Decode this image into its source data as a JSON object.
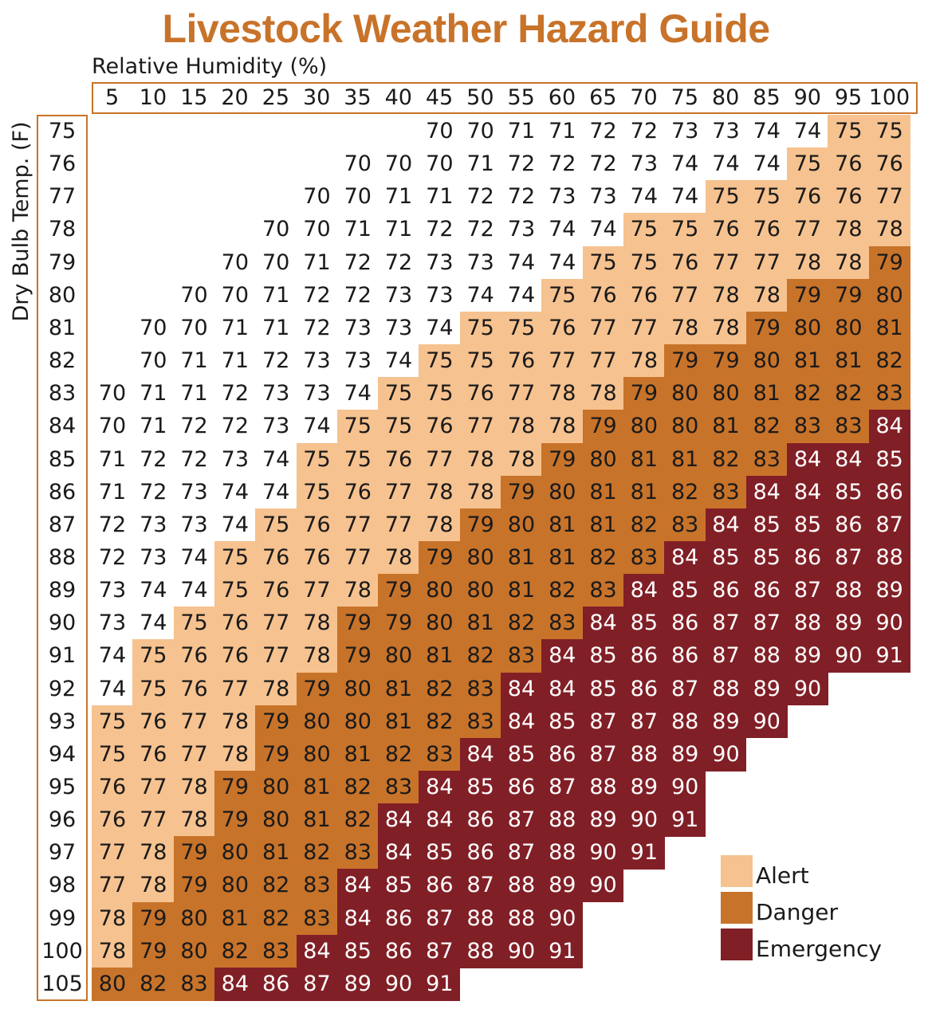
{
  "chart_data": {
    "type": "heatmap",
    "title": "Livestock Weather Hazard Guide",
    "xlabel": "Relative Humidity (%)",
    "ylabel": "Dry Bulb Temp. (F)",
    "x": [
      "5",
      "10",
      "15",
      "20",
      "25",
      "30",
      "35",
      "40",
      "45",
      "50",
      "55",
      "60",
      "65",
      "70",
      "75",
      "80",
      "85",
      "90",
      "95",
      "100"
    ],
    "y": [
      "75",
      "76",
      "77",
      "78",
      "79",
      "80",
      "81",
      "82",
      "83",
      "84",
      "85",
      "86",
      "87",
      "88",
      "89",
      "90",
      "91",
      "92",
      "93",
      "94",
      "95",
      "96",
      "97",
      "98",
      "99",
      "100",
      "105"
    ],
    "rows": [
      [
        null,
        null,
        null,
        null,
        null,
        null,
        null,
        null,
        70,
        70,
        71,
        71,
        72,
        72,
        73,
        73,
        74,
        74,
        75,
        75
      ],
      [
        null,
        null,
        null,
        null,
        null,
        null,
        70,
        70,
        70,
        71,
        72,
        72,
        72,
        73,
        74,
        74,
        74,
        75,
        76,
        76
      ],
      [
        null,
        null,
        null,
        null,
        null,
        70,
        70,
        71,
        71,
        72,
        72,
        73,
        73,
        74,
        74,
        75,
        75,
        76,
        76,
        77
      ],
      [
        null,
        null,
        null,
        null,
        70,
        70,
        71,
        71,
        72,
        72,
        73,
        74,
        74,
        75,
        75,
        76,
        76,
        77,
        78,
        78
      ],
      [
        null,
        null,
        null,
        70,
        70,
        71,
        72,
        72,
        73,
        73,
        74,
        74,
        75,
        75,
        76,
        77,
        77,
        78,
        78,
        79
      ],
      [
        null,
        null,
        70,
        70,
        71,
        72,
        72,
        73,
        73,
        74,
        74,
        75,
        76,
        76,
        77,
        78,
        78,
        79,
        79,
        80
      ],
      [
        null,
        70,
        70,
        71,
        71,
        72,
        73,
        73,
        74,
        75,
        75,
        76,
        77,
        77,
        78,
        78,
        79,
        80,
        80,
        81
      ],
      [
        null,
        70,
        71,
        71,
        72,
        73,
        73,
        74,
        75,
        75,
        76,
        77,
        77,
        78,
        79,
        79,
        80,
        81,
        81,
        82
      ],
      [
        70,
        71,
        71,
        72,
        73,
        73,
        74,
        75,
        75,
        76,
        77,
        78,
        78,
        79,
        80,
        80,
        81,
        82,
        82,
        83
      ],
      [
        70,
        71,
        72,
        72,
        73,
        74,
        75,
        75,
        76,
        77,
        78,
        78,
        79,
        80,
        80,
        81,
        82,
        83,
        83,
        84
      ],
      [
        71,
        72,
        72,
        73,
        74,
        75,
        75,
        76,
        77,
        78,
        78,
        79,
        80,
        81,
        81,
        82,
        83,
        84,
        84,
        85
      ],
      [
        71,
        72,
        73,
        74,
        74,
        75,
        76,
        77,
        78,
        78,
        79,
        80,
        81,
        81,
        82,
        83,
        84,
        84,
        85,
        86
      ],
      [
        72,
        73,
        73,
        74,
        75,
        76,
        77,
        77,
        78,
        79,
        80,
        81,
        81,
        82,
        83,
        84,
        85,
        85,
        86,
        87
      ],
      [
        72,
        73,
        74,
        75,
        76,
        76,
        77,
        78,
        79,
        80,
        81,
        81,
        82,
        83,
        84,
        85,
        85,
        86,
        87,
        88
      ],
      [
        73,
        74,
        74,
        75,
        76,
        77,
        78,
        79,
        80,
        80,
        81,
        82,
        83,
        84,
        85,
        86,
        86,
        87,
        88,
        89
      ],
      [
        73,
        74,
        75,
        76,
        77,
        78,
        79,
        79,
        80,
        81,
        82,
        83,
        84,
        85,
        86,
        87,
        87,
        88,
        89,
        90
      ],
      [
        74,
        75,
        76,
        76,
        77,
        78,
        79,
        80,
        81,
        82,
        83,
        84,
        85,
        86,
        86,
        87,
        88,
        89,
        90,
        91
      ],
      [
        74,
        75,
        76,
        77,
        78,
        79,
        80,
        81,
        82,
        83,
        84,
        84,
        85,
        86,
        87,
        88,
        89,
        90,
        null,
        null
      ],
      [
        75,
        76,
        77,
        78,
        79,
        80,
        80,
        81,
        82,
        83,
        84,
        85,
        87,
        87,
        88,
        89,
        90,
        null,
        null,
        null
      ],
      [
        75,
        76,
        77,
        78,
        79,
        80,
        81,
        82,
        83,
        84,
        85,
        86,
        87,
        88,
        89,
        90,
        null,
        null,
        null,
        null
      ],
      [
        76,
        77,
        78,
        79,
        80,
        81,
        82,
        83,
        84,
        85,
        86,
        87,
        88,
        89,
        90,
        null,
        null,
        null,
        null,
        null
      ],
      [
        76,
        77,
        78,
        79,
        80,
        81,
        82,
        84,
        84,
        86,
        87,
        88,
        89,
        90,
        91,
        null,
        null,
        null,
        null,
        null
      ],
      [
        77,
        78,
        79,
        80,
        81,
        82,
        83,
        84,
        85,
        86,
        87,
        88,
        90,
        91,
        null,
        null,
        null,
        null,
        null,
        null
      ],
      [
        77,
        78,
        79,
        80,
        82,
        83,
        84,
        85,
        86,
        87,
        88,
        89,
        90,
        null,
        null,
        null,
        null,
        null,
        null,
        null
      ],
      [
        78,
        79,
        80,
        81,
        82,
        83,
        84,
        86,
        87,
        88,
        88,
        90,
        null,
        null,
        null,
        null,
        null,
        null,
        null,
        null
      ],
      [
        78,
        79,
        80,
        82,
        83,
        84,
        85,
        86,
        87,
        88,
        90,
        91,
        null,
        null,
        null,
        null,
        null,
        null,
        null,
        null
      ],
      [
        80,
        82,
        83,
        84,
        86,
        87,
        89,
        90,
        91,
        null,
        null,
        null,
        null,
        null,
        null,
        null,
        null,
        null,
        null,
        null
      ]
    ],
    "categories": [
      {
        "name": "Alert",
        "min": 75,
        "max": 78,
        "color": "#f6c28f"
      },
      {
        "name": "Danger",
        "min": 79,
        "max": 83,
        "color": "#c8732a"
      },
      {
        "name": "Emergency",
        "min": 84,
        "max": 91,
        "color": "#811f26"
      }
    ],
    "text_color_dark": "#1a1a1a",
    "text_color_light": "#ffffff",
    "legend_position": "bottom-right"
  }
}
